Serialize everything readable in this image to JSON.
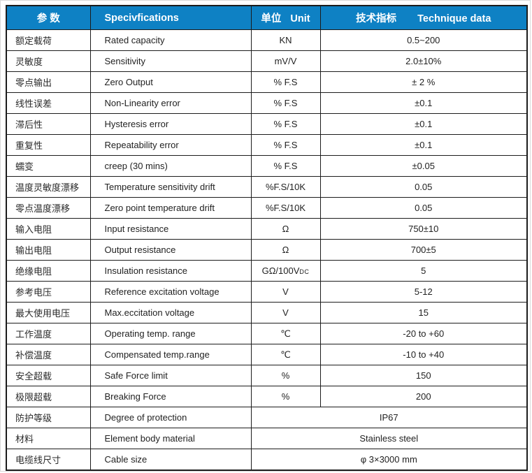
{
  "colors": {
    "header_bg": "#0e81c4",
    "header_text": "#ffffff",
    "border": "#1c1c1c",
    "body_text": "#222222"
  },
  "table": {
    "header": {
      "param": "参  数",
      "spec": "Specivfications",
      "unit_zh": "单位",
      "unit_en": "Unit",
      "value_zh": "技术指标",
      "value_en": "Technique data"
    },
    "rows": [
      {
        "param_zh": "额定载荷",
        "spec": "Rated capacity",
        "unit": "KN",
        "value": "0.5~200"
      },
      {
        "param_zh": "灵敏度",
        "spec": "Sensitivity",
        "unit": "mV/V",
        "value": "2.0±10%"
      },
      {
        "param_zh": "零点输出",
        "spec": "Zero Output",
        "unit": "% F.S",
        "value": "± 2 %"
      },
      {
        "param_zh": "线性误差",
        "spec": "Non-Linearity error",
        "unit": "% F.S",
        "value": "±0.1"
      },
      {
        "param_zh": "滞后性",
        "spec": "Hysteresis error",
        "unit": "% F.S",
        "value": "±0.1"
      },
      {
        "param_zh": "重复性",
        "spec": "Repeatability error",
        "unit": "% F.S",
        "value": "±0.1"
      },
      {
        "param_zh": "蠕变",
        "spec": "creep (30 mins)",
        "unit": "% F.S",
        "value": "±0.05"
      },
      {
        "param_zh": "温度灵敏度漂移",
        "spec": "Temperature sensitivity drift",
        "unit": "%F.S/10K",
        "value": "0.05"
      },
      {
        "param_zh": "零点温度漂移",
        "spec": "Zero point temperature drift",
        "unit": "%F.S/10K",
        "value": "0.05"
      },
      {
        "param_zh": "输入电阻",
        "spec": "Input resistance",
        "unit": "Ω",
        "value": "750±10"
      },
      {
        "param_zh": "输出电阻",
        "spec": "Output resistance",
        "unit": "Ω",
        "value": "700±5"
      },
      {
        "param_zh": "绝缘电阻",
        "spec": "Insulation resistance",
        "unit": "GΩ/100V",
        "unit_sub": "DC",
        "value": "5"
      },
      {
        "param_zh": "参考电压",
        "spec": "Reference excitation voltage",
        "unit": "V",
        "value": "5-12"
      },
      {
        "param_zh": "最大使用电压",
        "spec": "Max.eccitation voltage",
        "unit": "V",
        "value": "15"
      },
      {
        "param_zh": "工作温度",
        "spec": "Operating temp. range",
        "unit": "℃",
        "value": "-20 to +60"
      },
      {
        "param_zh": "补偿温度",
        "spec": "Compensated temp.range",
        "unit": "℃",
        "value": "-10 to +40"
      },
      {
        "param_zh": "安全超载",
        "spec": "Safe Force limit",
        "unit": "%",
        "value": "150"
      },
      {
        "param_zh": "极限超载",
        "spec": "Breaking Force",
        "unit": "%",
        "value": "200"
      },
      {
        "param_zh": "防护等级",
        "spec": "Degree of protection",
        "merged": true,
        "value": "IP67"
      },
      {
        "param_zh": "材料",
        "spec": "Element body material",
        "merged": true,
        "value": "Stainless steel"
      },
      {
        "param_zh": "电缆线尺寸",
        "spec": "Cable size",
        "merged": true,
        "value": "φ 3×3000 mm"
      }
    ]
  }
}
